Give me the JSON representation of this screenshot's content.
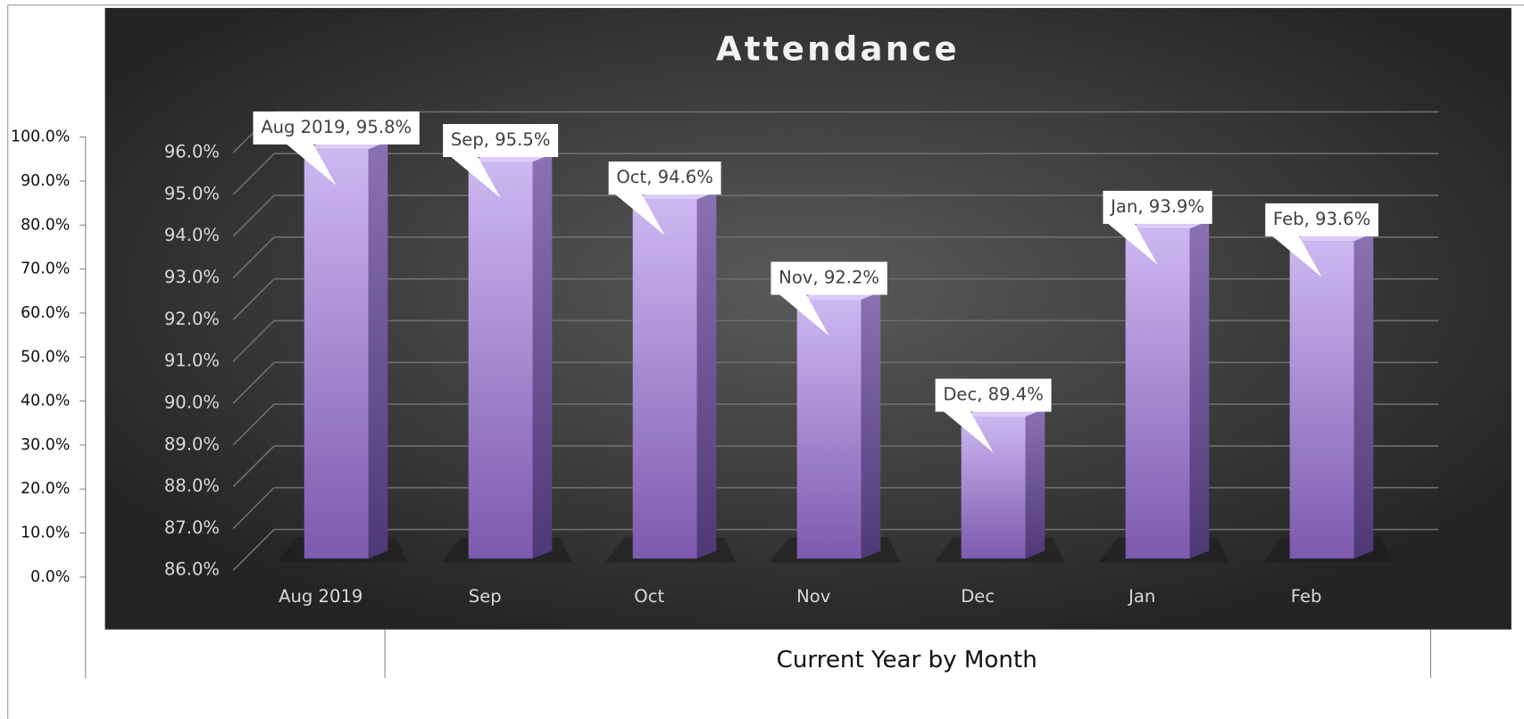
{
  "chart_data": {
    "type": "bar",
    "title": "Attendance",
    "x_label": "Current Year by Month",
    "categories": [
      "Aug 2019",
      "Sep",
      "Oct",
      "Nov",
      "Dec",
      "Jan",
      "Feb"
    ],
    "values": [
      95.8,
      95.5,
      94.6,
      92.2,
      89.4,
      93.9,
      93.6
    ],
    "value_labels": [
      "Aug 2019, 95.8%",
      "Sep, 95.5%",
      "Oct, 94.6%",
      "Nov, 92.2%",
      "Dec, 89.4%",
      "Jan, 93.9%",
      "Feb, 93.6%"
    ],
    "color": "#b9a0e6",
    "ylim": [
      86,
      96
    ],
    "yticks": [
      {
        "value": 86,
        "label": "86.0%"
      },
      {
        "value": 87,
        "label": "87.0%"
      },
      {
        "value": 88,
        "label": "88.0%"
      },
      {
        "value": 89,
        "label": "89.0%"
      },
      {
        "value": 90,
        "label": "90.0%"
      },
      {
        "value": 91,
        "label": "91.0%"
      },
      {
        "value": 92,
        "label": "92.0%"
      },
      {
        "value": 93,
        "label": "93.0%"
      },
      {
        "value": 94,
        "label": "94.0%"
      },
      {
        "value": 95,
        "label": "95.0%"
      },
      {
        "value": 96,
        "label": "96.0%"
      }
    ],
    "y2lim": [
      0,
      100
    ],
    "y2ticks": [
      {
        "value": 0,
        "label": "0.0%"
      },
      {
        "value": 10,
        "label": "10.0%"
      },
      {
        "value": 20,
        "label": "20.0%"
      },
      {
        "value": 30,
        "label": "30.0%"
      },
      {
        "value": 40,
        "label": "40.0%"
      },
      {
        "value": 50,
        "label": "50.0%"
      },
      {
        "value": 60,
        "label": "60.0%"
      },
      {
        "value": 70,
        "label": "70.0%"
      },
      {
        "value": 80,
        "label": "80.0%"
      },
      {
        "value": 90,
        "label": "90.0%"
      },
      {
        "value": 100,
        "label": "100.0%"
      }
    ],
    "grid": true
  }
}
